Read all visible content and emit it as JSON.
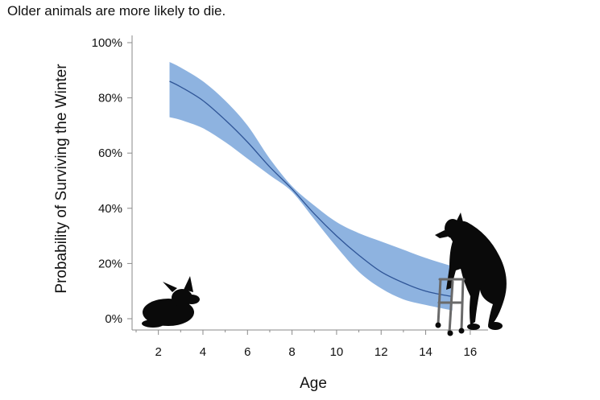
{
  "page_title": "Older animals are more likely to die.",
  "chart_data": {
    "type": "line",
    "title": "",
    "xlabel": "Age",
    "ylabel": "Probability of Surviving the Winter",
    "xlim": [
      1,
      16.8
    ],
    "ylim": [
      0,
      100
    ],
    "x_ticks": [
      2,
      4,
      6,
      8,
      10,
      12,
      14,
      16
    ],
    "x_tick_labels": [
      "2",
      "4",
      "6",
      "8",
      "10",
      "12",
      "14",
      "16"
    ],
    "y_ticks": [
      0,
      20,
      40,
      60,
      80,
      100
    ],
    "y_tick_labels": [
      "0%",
      "20%",
      "40%",
      "60%",
      "80%",
      "100%"
    ],
    "grid": false,
    "series": [
      {
        "x": [
          2.5,
          3,
          4,
          5,
          6,
          7,
          8,
          9,
          10,
          11,
          12,
          13,
          14,
          15.2
        ],
        "values": [
          86,
          84,
          79,
          72,
          64,
          55,
          47,
          38,
          30,
          23,
          17,
          13,
          10,
          8
        ],
        "lower": [
          73,
          72,
          69,
          64,
          58,
          52,
          46,
          36,
          26,
          17,
          11,
          7,
          5,
          3
        ],
        "upper": [
          93,
          91,
          86,
          79,
          70,
          58,
          48,
          41,
          35,
          31,
          28,
          25,
          22,
          19
        ],
        "color": "#2f5597",
        "band_color": "#7aa6db"
      }
    ],
    "illustrations": {
      "young_animal": "fawn-silhouette",
      "old_animal": "elderly-deer-with-walker-silhouette"
    }
  }
}
